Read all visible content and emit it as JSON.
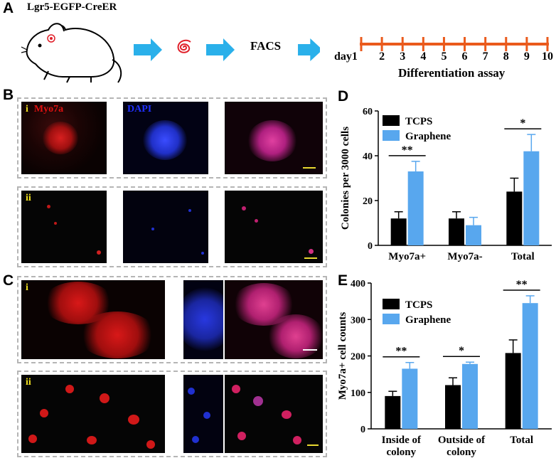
{
  "panel_letters": {
    "a": "A",
    "b": "B",
    "c": "C",
    "d": "D",
    "e": "E"
  },
  "panelA": {
    "mouse_label": "Lgr5-EGFP-CreER",
    "facs_label": "FACS",
    "timeline_prefix": "day1",
    "timeline_days": [
      "2",
      "3",
      "4",
      "5",
      "6",
      "7",
      "8",
      "9",
      "10"
    ],
    "timeline_title": "Differentiation assay",
    "colors": {
      "arrow": "#2ab0ea",
      "timeline": "#ea5a1c",
      "spiral": "#e0202a"
    }
  },
  "microscopy": {
    "row_labels": {
      "i": "i",
      "ii": "ii"
    },
    "channel_labels": {
      "myo7a": "Myo7a",
      "dapi": "DAPI"
    }
  },
  "chart_data": [
    {
      "id": "D",
      "type": "bar",
      "ylabel": "Colonies per 3000 cells",
      "xlabel": "",
      "categories": [
        "Myo7a+",
        "Myo7a-",
        "Total"
      ],
      "ylim": [
        0,
        60
      ],
      "yticks": [
        "0",
        "20",
        "40",
        "60"
      ],
      "series": [
        {
          "name": "TCPS",
          "color": "#000000",
          "values": [
            12,
            12,
            24
          ],
          "errors": [
            3,
            3,
            6
          ]
        },
        {
          "name": "Graphene",
          "color": "#58a7ee",
          "values": [
            33,
            9,
            42
          ],
          "errors": [
            4.5,
            3.5,
            7.5
          ]
        }
      ],
      "significance": [
        {
          "category_index": 0,
          "label": "**"
        },
        {
          "category_index": 2,
          "label": "*"
        }
      ],
      "legend": "top-left",
      "grid": false
    },
    {
      "id": "E",
      "type": "bar",
      "ylabel": "Myo7a+ cell counts",
      "xlabel": "",
      "categories": [
        "Inside of colony",
        "Outside of colony",
        "Total"
      ],
      "ylim": [
        0,
        400
      ],
      "yticks": [
        "0",
        "100",
        "200",
        "300",
        "400"
      ],
      "series": [
        {
          "name": "TCPS",
          "color": "#000000",
          "values": [
            90,
            120,
            208
          ],
          "errors": [
            13,
            20,
            36
          ]
        },
        {
          "name": "Graphene",
          "color": "#58a7ee",
          "values": [
            165,
            178,
            345
          ],
          "errors": [
            17,
            5,
            20
          ]
        }
      ],
      "significance": [
        {
          "category_index": 0,
          "label": "**"
        },
        {
          "category_index": 1,
          "label": "*"
        },
        {
          "category_index": 2,
          "label": "**"
        }
      ],
      "legend": "top-left",
      "grid": false
    }
  ]
}
